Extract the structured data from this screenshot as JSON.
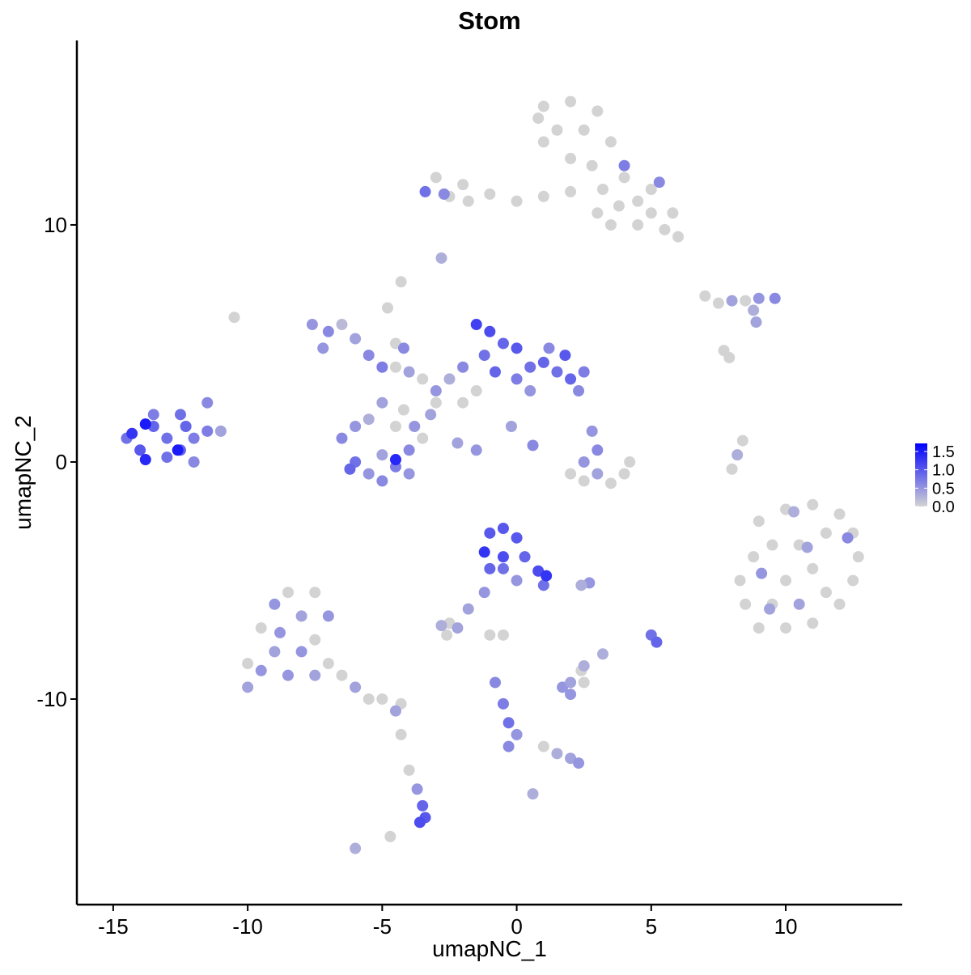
{
  "chart_data": {
    "type": "scatter",
    "title": "Stom",
    "x_label": "umapNC_1",
    "y_label": "umapNC_2",
    "xlim": [
      -16.35,
      14.33
    ],
    "ylim": [
      -18.67,
      17.78
    ],
    "xticks": [
      -15,
      -10,
      -5,
      0,
      5,
      10
    ],
    "yticks": [
      -10,
      0,
      10
    ],
    "color_low": "#d3d3d3",
    "color_high": "#0000ff",
    "color_lim": [
      0,
      1.72
    ],
    "color_ticks": [
      {
        "value": 0,
        "label": "0.0"
      },
      {
        "value": 0.5,
        "label": "0.5"
      },
      {
        "value": 1,
        "label": "1.0"
      },
      {
        "value": 1.5,
        "label": "1.5"
      }
    ],
    "x": [
      1,
      2,
      3,
      1.5,
      2.5,
      3.5,
      2.8,
      3.2,
      4.5,
      5,
      5.5,
      6,
      4,
      5,
      1,
      0.8,
      2,
      4.5,
      5.8,
      3.8,
      -3,
      -2,
      -1,
      0,
      1,
      -2.5,
      2,
      3,
      3.5,
      -1.8,
      -4.3,
      -10.5,
      7,
      7.5,
      8.5,
      7.7,
      7.9,
      9,
      10,
      11,
      12,
      12.5,
      12.7,
      12.5,
      12,
      11,
      10,
      9,
      8.5,
      8.3,
      8.8,
      9.5,
      10.5,
      11.5,
      11,
      10,
      9.5,
      11.5,
      -4.5,
      -3.5,
      -4.8,
      -4.5,
      -1.5,
      -2,
      -3,
      -4.5,
      -4.2,
      -3.5,
      2,
      2.5,
      3.5,
      4,
      4.2,
      8,
      8.4,
      -2.5,
      -2.6,
      -1,
      -0.5,
      -10,
      -9.5,
      -8.5,
      -7.5,
      -7.5,
      -7,
      -6.5,
      -5.5,
      -5,
      -4.3,
      -4.3,
      -4,
      -4.7,
      1,
      2.5,
      2.4,
      4,
      5.3,
      -2.7,
      -3.4,
      -2.8,
      8,
      9,
      9.6,
      8.8,
      8.9,
      10.5,
      9.1,
      10.8,
      12.3,
      9.4,
      10.3,
      -7.6,
      -7,
      -6.5,
      -6,
      -7.2,
      -5.5,
      -5,
      -4,
      -4.2,
      -1.5,
      -1,
      -0.5,
      0,
      -1.2,
      -0.8,
      0,
      0.5,
      1,
      1.5,
      2,
      2.5,
      1.2,
      -2,
      -2.5,
      -3,
      1.8,
      0.5,
      2.3,
      -3.2,
      -2.2,
      -1.5,
      0.6,
      -0.2,
      -6.5,
      -6,
      -5.5,
      -5,
      -4.5,
      -4,
      -3.8,
      -5.5,
      -6,
      -5,
      -4,
      -6.2,
      -5,
      -4.5,
      -14.5,
      -14,
      -13.5,
      -13,
      -12.5,
      -12,
      -13,
      -13.5,
      -12.5,
      -12,
      -11.5,
      -11.5,
      -11,
      -13.8,
      -13.8,
      -12.6,
      -14.3,
      -12.3,
      3,
      3,
      2.8,
      2.5,
      8.2,
      -1,
      -0.5,
      0,
      -1.2,
      -0.5,
      0.3,
      0.8,
      1,
      -0.5,
      0,
      -1,
      1.1,
      -1.2,
      -1.8,
      -2.8,
      -2.2,
      -10,
      -9,
      -9,
      -8.5,
      -8,
      -8,
      -7.5,
      -7,
      -6,
      -4.5,
      -9.5,
      -8.8,
      -3.7,
      -3.5,
      -3.4,
      -3.6,
      -6,
      -0.8,
      -0.5,
      -0.3,
      0,
      -0.3,
      1.5,
      2,
      2.3,
      0.6,
      1.7,
      2,
      2,
      2.5,
      5,
      5.2,
      3.2,
      2.7,
      2.4
    ],
    "values": [
      15,
      15.2,
      14.8,
      14,
      14,
      13.5,
      12.5,
      11.5,
      11,
      10.5,
      9.8,
      9.5,
      12,
      11.5,
      13.5,
      14.5,
      12.8,
      10,
      10.5,
      10.8,
      12,
      11.7,
      11.3,
      11,
      11.2,
      11.2,
      11.4,
      10.5,
      10,
      11,
      7.6,
      6.1,
      7,
      6.7,
      6.8,
      4.7,
      4.4,
      -2.5,
      -2,
      -1.8,
      -2.2,
      -3,
      -4,
      -5,
      -6,
      -6.8,
      -7,
      -7,
      -6,
      -5,
      -4,
      -3.5,
      -3.5,
      -3,
      -4.5,
      -5,
      -6,
      -5.5,
      4,
      3.5,
      6.5,
      5,
      3,
      2.5,
      2.5,
      1.5,
      2.2,
      1,
      -0.5,
      -0.8,
      -0.9,
      -0.5,
      0,
      -0.3,
      0.9,
      -6.8,
      -7.3,
      -7.3,
      -7.3,
      -8.5,
      -7,
      -5.5,
      -5.5,
      -7.5,
      -8.5,
      -9,
      -10,
      -10,
      -10.2,
      -11.5,
      -13,
      -15.8,
      -12,
      -9.3,
      -8.8,
      12.5,
      11.8,
      11.3,
      11.4,
      8.6,
      6.8,
      6.9,
      6.9,
      6.4,
      5.9,
      -6,
      -4.7,
      -3.6,
      -3.2,
      -6.2,
      -2.1,
      5.8,
      5.5,
      5.8,
      5.2,
      4.8,
      4.5,
      4,
      3.8,
      4.8,
      5.8,
      5.5,
      5,
      4.8,
      4.5,
      3.8,
      3.5,
      4,
      4.2,
      3.8,
      3.5,
      3.8,
      4.8,
      4,
      3.5,
      3,
      4.5,
      3,
      3,
      2,
      0.8,
      0.5,
      0.7,
      1.5,
      1,
      0,
      -0.5,
      0.3,
      -0.2,
      0.5,
      1.5,
      1.8,
      1.5,
      -0.8,
      -0.5,
      -0.3,
      2.5,
      0.1,
      1,
      0.5,
      1.5,
      1,
      0.5,
      1,
      0.2,
      2,
      2,
      0,
      1.3,
      2.5,
      1.3,
      1.6,
      0.1,
      0.5,
      1.2,
      1.5,
      -0.5,
      0.5,
      1.3,
      0,
      0.3,
      -3,
      -2.8,
      -3.2,
      -3.8,
      -4,
      -4,
      -4.6,
      -5.2,
      -4.5,
      -5,
      -4.5,
      -4.8,
      -5.5,
      -6.2,
      -6.9,
      -7,
      -9.5,
      -6,
      -8,
      -9,
      -6.5,
      -8,
      -9,
      -6.5,
      -9.5,
      -10.5,
      -8.8,
      -7.2,
      -13.8,
      -14.5,
      -15,
      -15.2,
      -16.3,
      -9.3,
      -10.2,
      -11,
      -11.5,
      -12,
      -12.3,
      -12.5,
      -12.7,
      -14,
      -9.5,
      -9.3,
      -9.8,
      -8.6,
      -7.3,
      -7.6,
      -8.1,
      -5.1,
      -5.2
    ],
    "expression": [
      0,
      0,
      0,
      0,
      0,
      0,
      0,
      0,
      0,
      0,
      0,
      0,
      0,
      0,
      0,
      0,
      0,
      0,
      0,
      0,
      0,
      0,
      0,
      0,
      0,
      0,
      0,
      0,
      0,
      0,
      0,
      0,
      0,
      0,
      0,
      0,
      0,
      0,
      0,
      0,
      0,
      0,
      0,
      0,
      0,
      0,
      0,
      0,
      0,
      0,
      0,
      0,
      0,
      0,
      0,
      0,
      0,
      0,
      0,
      0,
      0,
      0,
      0,
      0,
      0,
      0,
      0,
      0,
      0,
      0,
      0,
      0,
      0,
      0,
      0,
      0,
      0,
      0,
      0,
      0,
      0,
      0,
      0,
      0,
      0,
      0,
      0,
      0,
      0,
      0,
      0,
      0,
      0,
      0,
      0,
      0.7,
      0.6,
      0.6,
      0.8,
      0.3,
      0.4,
      0.5,
      0.6,
      0.3,
      0.4,
      0.4,
      0.5,
      0.4,
      0.6,
      0.4,
      0.3,
      0.5,
      0.6,
      0.2,
      0.4,
      0.5,
      0.6,
      0.7,
      0.4,
      0.6,
      1.2,
      1.1,
      0.9,
      1.0,
      0.8,
      0.9,
      0.7,
      0.8,
      0.9,
      0.8,
      0.9,
      0.7,
      0.6,
      0.6,
      0.3,
      0.5,
      1.0,
      0.5,
      0.6,
      0.4,
      0.4,
      0.5,
      0.6,
      0.4,
      0.6,
      0.8,
      0.5,
      0.4,
      0.7,
      0.6,
      0.5,
      0.3,
      0.5,
      0.6,
      0.5,
      0.9,
      0.4,
      1.4,
      0.8,
      1.0,
      0.9,
      0.8,
      0.9,
      0.7,
      0.8,
      0.7,
      0.8,
      0.6,
      0.7,
      0.6,
      0.4,
      1.5,
      1.4,
      1.5,
      1.3,
      0.9,
      0.4,
      0.6,
      0.5,
      0.5,
      0.3,
      1.0,
      1.0,
      1.0,
      1.3,
      1.1,
      0.9,
      1.1,
      0.8,
      0.8,
      0.5,
      0.9,
      1.3,
      0.5,
      0.4,
      0.3,
      0.4,
      0.4,
      0.5,
      0.4,
      0.5,
      0.4,
      0.5,
      0.4,
      0.5,
      0.4,
      0.4,
      0.5,
      0.5,
      0.5,
      0.9,
      1.0,
      1.1,
      0.3,
      0.6,
      0.7,
      0.8,
      0.5,
      0.6,
      0.3,
      0.4,
      0.5,
      0.3,
      0.5,
      0.4,
      0.5,
      0.3,
      0.8,
      0.9,
      0.3,
      0.5,
      0.3
    ]
  }
}
